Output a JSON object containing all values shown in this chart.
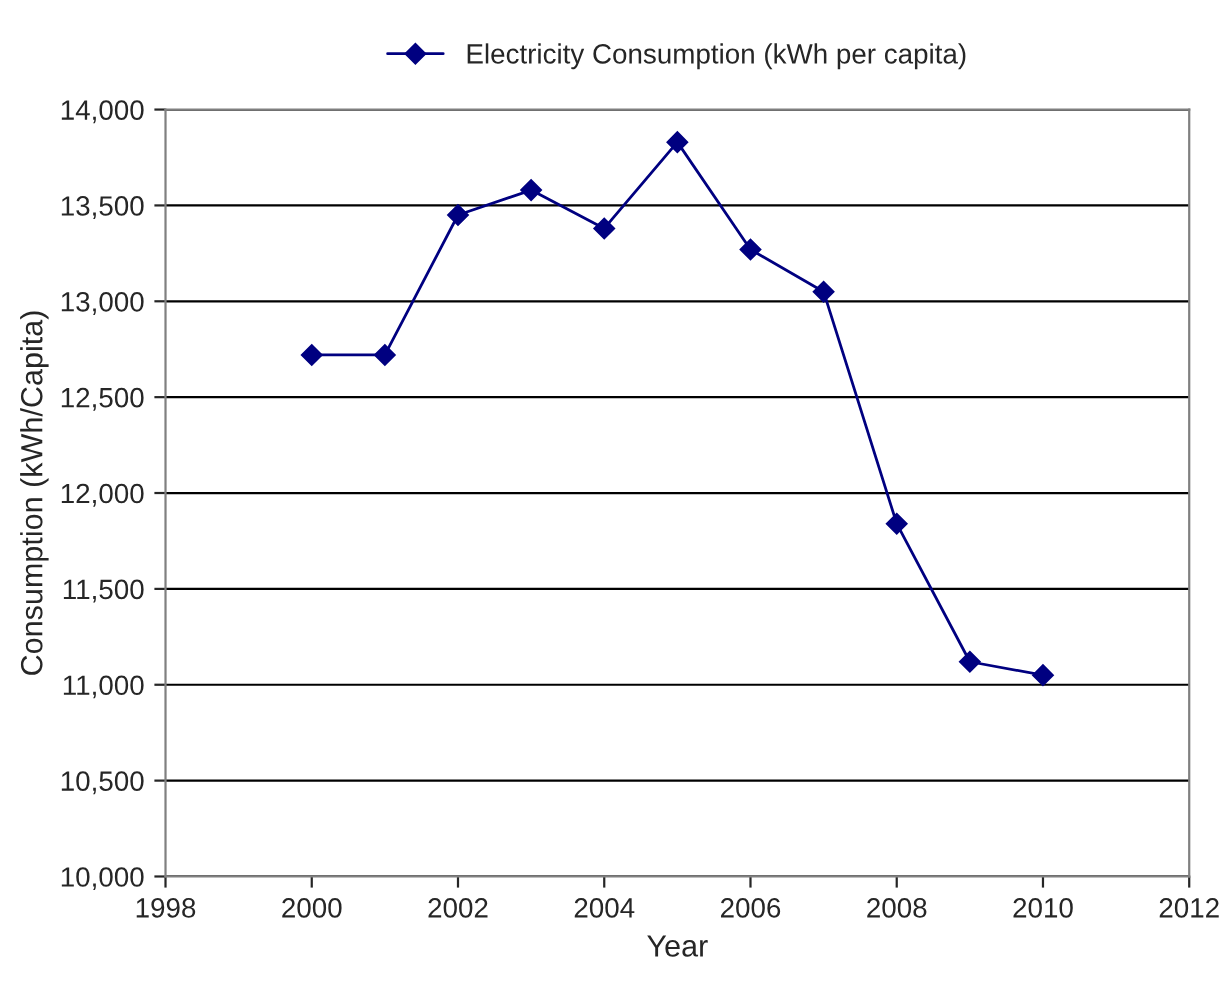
{
  "chart_data": {
    "type": "line",
    "xlabel": "Year",
    "ylabel": "Consumption (kWh/Capita)",
    "x": [
      2000,
      2001,
      2002,
      2003,
      2004,
      2005,
      2006,
      2007,
      2008,
      2009,
      2010
    ],
    "series": [
      {
        "name": "Electricity Consumption (kWh per capita)",
        "color": "#000080",
        "values": [
          12720,
          12720,
          13450,
          13580,
          13380,
          13830,
          13270,
          13050,
          11840,
          11120,
          11050
        ]
      }
    ],
    "xlim": [
      1998,
      2012
    ],
    "xticks": [
      1998,
      2000,
      2002,
      2004,
      2006,
      2008,
      2010,
      2012
    ],
    "ylim": [
      10000,
      14000
    ],
    "yticks": [
      {
        "value": 10000,
        "label": "10,000"
      },
      {
        "value": 10500,
        "label": "10,500"
      },
      {
        "value": 11000,
        "label": "11,000"
      },
      {
        "value": 11500,
        "label": "11,500"
      },
      {
        "value": 12000,
        "label": "12,000"
      },
      {
        "value": 12500,
        "label": "12,500"
      },
      {
        "value": 13000,
        "label": "13,000"
      },
      {
        "value": 13500,
        "label": "13,500"
      },
      {
        "value": 14000,
        "label": "14,000"
      }
    ],
    "grid": "y",
    "legend": "top",
    "marker": "diamond",
    "line_style": "solid"
  }
}
